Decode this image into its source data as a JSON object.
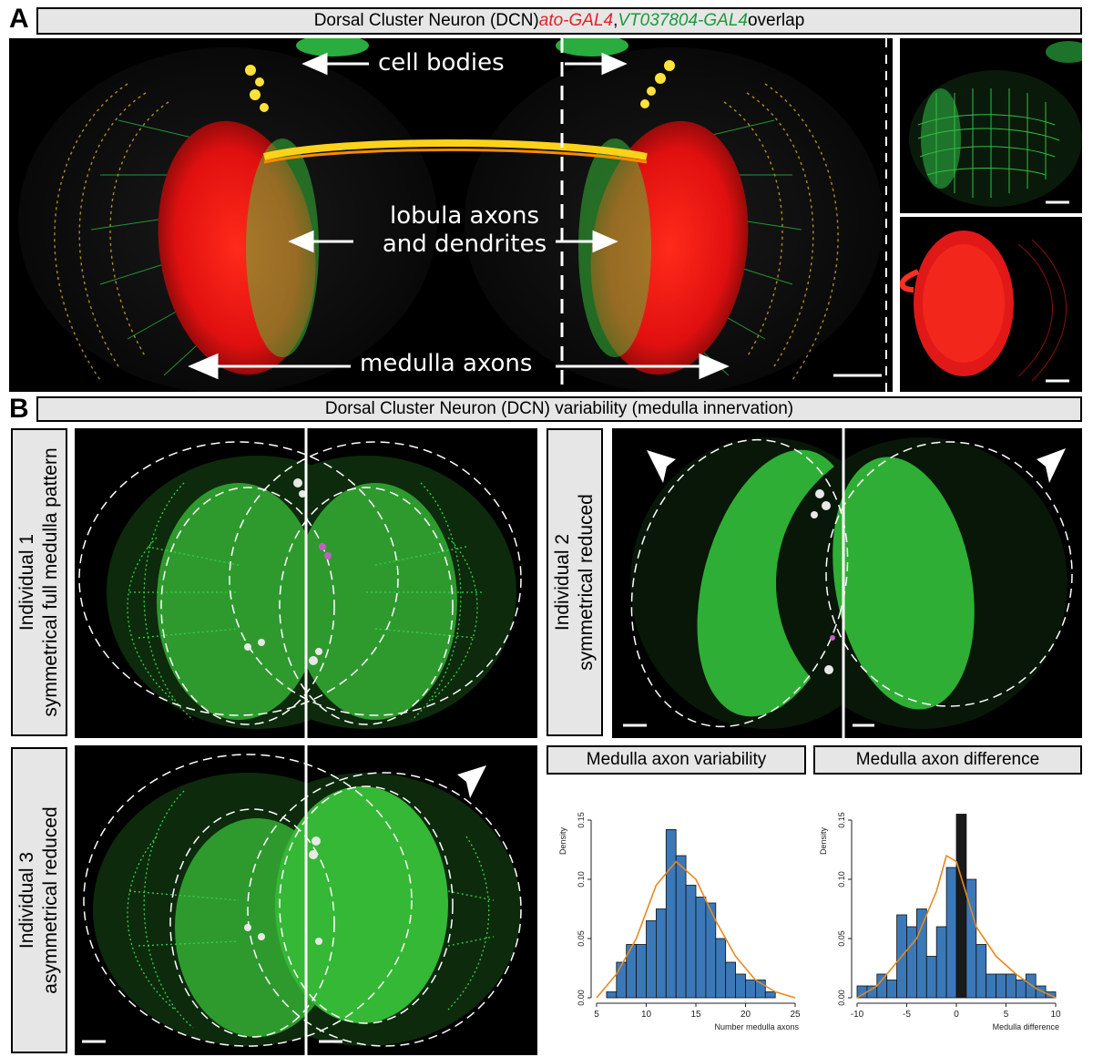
{
  "panelA": {
    "letter": "A",
    "title_part1": "Dorsal Cluster Neuron (DCN) ",
    "title_red": "ato-GAL4",
    "title_sep": ", ",
    "title_green": "VT037804-GAL4",
    "title_part2": " overlap",
    "label_cell_bodies": "cell bodies",
    "label_lobula_line1": "lobula axons",
    "label_lobula_line2": "and dendrites",
    "label_medulla_axons": "medulla axons",
    "colors": {
      "red": "#e0222a",
      "green": "#1a9a3a"
    }
  },
  "panelB": {
    "letter": "B",
    "title": "Dorsal Cluster Neuron (DCN) variability (medulla innervation)",
    "individual1_line1": "Individual 1",
    "individual1_line2": "symmetrical full medulla pattern",
    "individual2_line1": "Individual 2",
    "individual2_line2": "symmetrical reduced",
    "individual3_line1": "Individual 3",
    "individual3_line2": "asymmetrical reduced",
    "hist1_title": "Medulla axon variability",
    "hist2_title": "Medulla axon difference"
  },
  "chart_data": [
    {
      "type": "bar",
      "title": "Medulla axon variability",
      "xlabel": "Number medulla axons",
      "ylabel": "Density",
      "xlim": [
        5,
        25
      ],
      "ylim": [
        0,
        0.15
      ],
      "xticks": [
        5,
        10,
        15,
        20,
        25
      ],
      "yticks": [
        0.0,
        0.05,
        0.1,
        0.15
      ],
      "bin_width": 1,
      "bins_start": [
        6,
        7,
        8,
        9,
        10,
        11,
        12,
        13,
        14,
        15,
        16,
        17,
        18,
        19,
        20,
        21,
        22
      ],
      "values": [
        0.005,
        0.03,
        0.045,
        0.045,
        0.065,
        0.075,
        0.142,
        0.12,
        0.095,
        0.085,
        0.08,
        0.05,
        0.03,
        0.02,
        0.015,
        0.015,
        0.005
      ],
      "density_curve": {
        "x": [
          5,
          7,
          9,
          11,
          13,
          15,
          17,
          19,
          21,
          23,
          25
        ],
        "y": [
          0.0,
          0.02,
          0.05,
          0.095,
          0.115,
          0.1,
          0.065,
          0.035,
          0.015,
          0.005,
          0.0
        ]
      },
      "colors": {
        "bar": "#3b78b8",
        "curve": "#e58a1f"
      }
    },
    {
      "type": "bar",
      "title": "Medulla axon difference",
      "xlabel": "Medulla difference",
      "ylabel": "Density",
      "xlim": [
        -10,
        10
      ],
      "ylim": [
        0,
        0.15
      ],
      "xticks": [
        -10,
        -5,
        0,
        5,
        10
      ],
      "yticks": [
        0.0,
        0.05,
        0.1,
        0.15
      ],
      "bin_width": 1,
      "bins_start": [
        -10,
        -9,
        -8,
        -7,
        -6,
        -5,
        -4,
        -3,
        -2,
        -1,
        0,
        1,
        2,
        3,
        4,
        5,
        6,
        7,
        8,
        9
      ],
      "values": [
        0.01,
        0.01,
        0.02,
        0.015,
        0.07,
        0.06,
        0.075,
        0.035,
        0.06,
        0.11,
        0.155,
        0.1,
        0.045,
        0.02,
        0.02,
        0.02,
        0.015,
        0.02,
        0.01,
        0.005
      ],
      "highlight_bin": 0,
      "density_curve": {
        "x": [
          -10,
          -8,
          -6,
          -4,
          -2,
          -1,
          0,
          2,
          4,
          6,
          8,
          10
        ],
        "y": [
          0.0,
          0.01,
          0.03,
          0.05,
          0.09,
          0.12,
          0.115,
          0.06,
          0.035,
          0.02,
          0.008,
          0.0
        ]
      },
      "colors": {
        "bar": "#3b78b8",
        "highlight": "#1a1a1a",
        "curve": "#e58a1f"
      }
    }
  ]
}
